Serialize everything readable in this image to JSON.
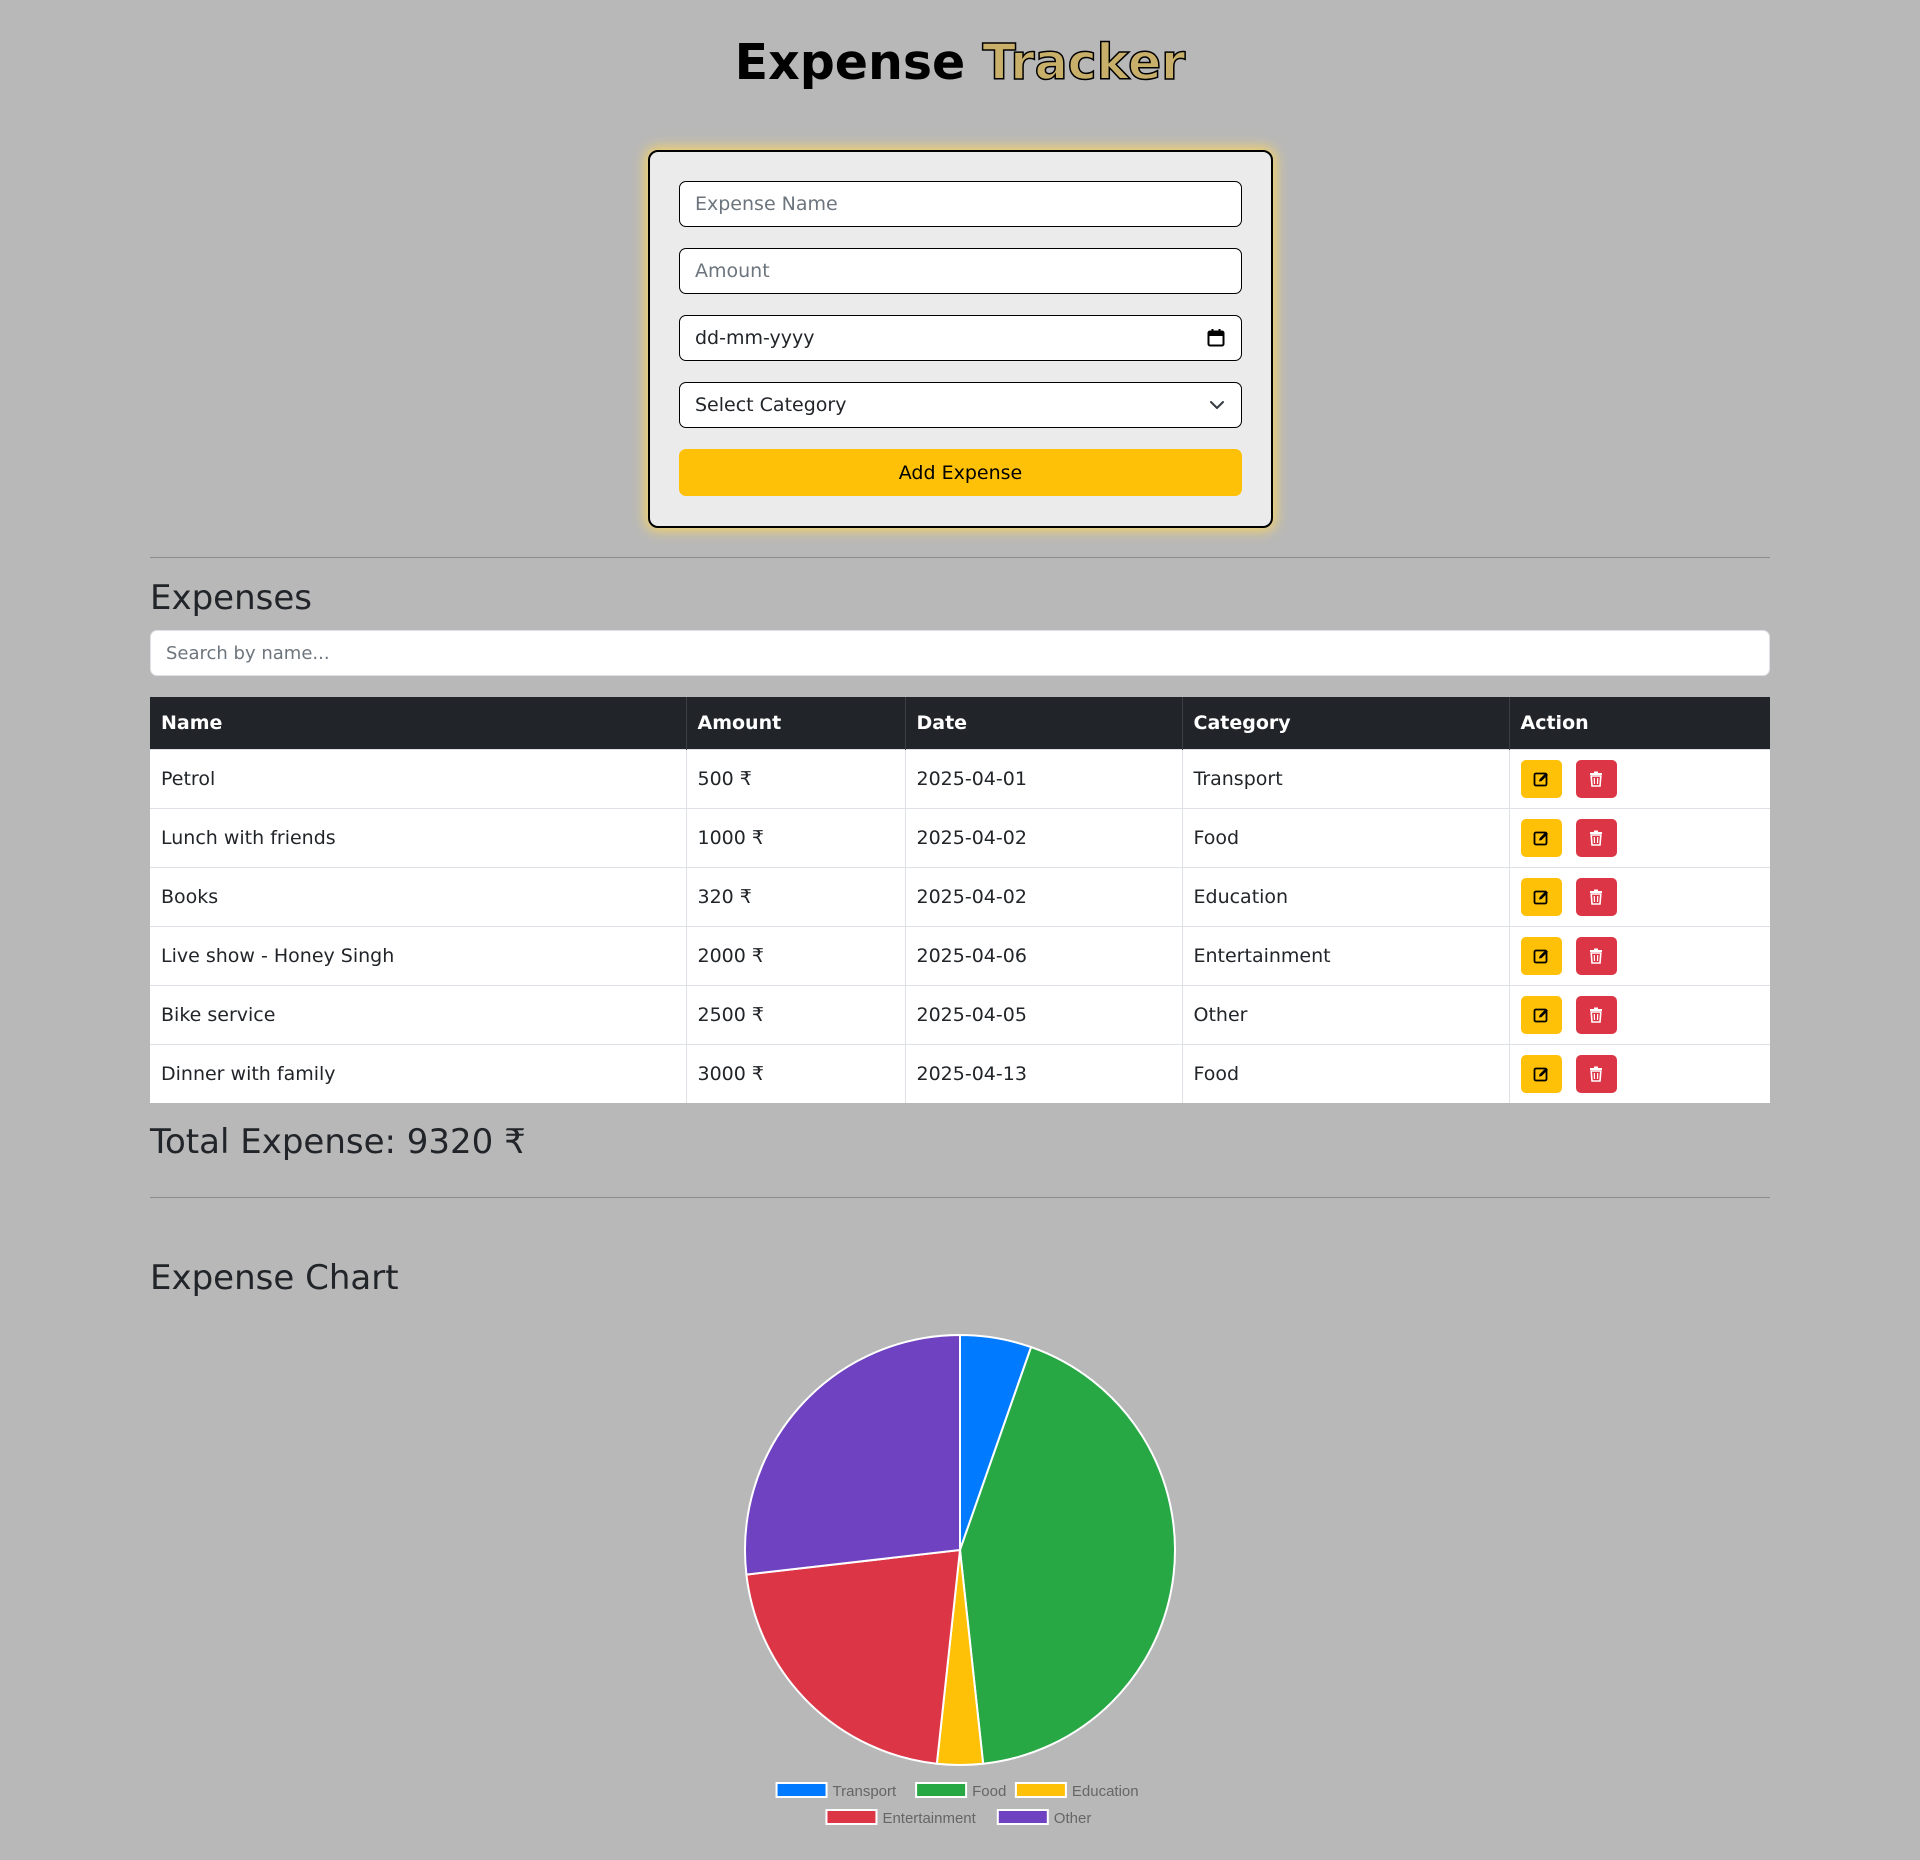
{
  "header": {
    "title_part1": "Expense",
    "title_part2": "Tracker"
  },
  "form": {
    "name_placeholder": "Expense Name",
    "amount_placeholder": "Amount",
    "date_placeholder": "dd-mm-yyyy",
    "category_selected": "Select Category",
    "submit_label": "Add Expense"
  },
  "expenses": {
    "heading": "Expenses",
    "search_placeholder": "Search by name...",
    "columns": [
      "Name",
      "Amount",
      "Date",
      "Category",
      "Action"
    ],
    "rows": [
      {
        "name": "Petrol",
        "amount": "500 ₹",
        "date": "2025-04-01",
        "category": "Transport"
      },
      {
        "name": "Lunch with friends",
        "amount": "1000 ₹",
        "date": "2025-04-02",
        "category": "Food"
      },
      {
        "name": "Books",
        "amount": "320 ₹",
        "date": "2025-04-02",
        "category": "Education"
      },
      {
        "name": "Live show - Honey Singh",
        "amount": "2000 ₹",
        "date": "2025-04-06",
        "category": "Entertainment"
      },
      {
        "name": "Bike service",
        "amount": "2500 ₹",
        "date": "2025-04-05",
        "category": "Other"
      },
      {
        "name": "Dinner with family",
        "amount": "3000 ₹",
        "date": "2025-04-13",
        "category": "Food"
      }
    ],
    "total_label": "Total Expense: 9320 ₹"
  },
  "chart": {
    "heading": "Expense Chart"
  },
  "chart_data": {
    "type": "pie",
    "categories": [
      "Transport",
      "Food",
      "Education",
      "Entertainment",
      "Other"
    ],
    "values": [
      500,
      4000,
      320,
      2000,
      2500
    ],
    "colors": [
      "#007bff",
      "#28a745",
      "#ffc107",
      "#dc3545",
      "#6f42c1"
    ],
    "legend_position": "bottom"
  },
  "colors": {
    "background": "#b8b8b8",
    "accent": "#ffc107",
    "danger": "#dc3545",
    "table_header": "#212529"
  },
  "icons": {
    "edit": "pencil-square-icon",
    "delete": "trash-icon",
    "date": "calendar-icon",
    "select": "chevron-down-icon"
  }
}
